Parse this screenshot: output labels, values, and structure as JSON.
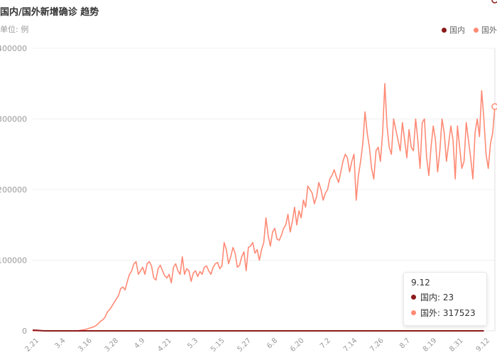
{
  "chart_data": {
    "type": "line",
    "title": "国内/国外新增确诊 趋势",
    "unit_label": "单位: 例",
    "ylim": [
      0,
      400000
    ],
    "y_ticks": [
      0,
      100000,
      200000,
      300000,
      400000
    ],
    "y_tick_labels": [
      "0",
      "100000",
      "200000",
      "300000",
      "400000"
    ],
    "x_tick_labels": [
      "2.21",
      "3.4",
      "3.16",
      "3.28",
      "4.9",
      "4.21",
      "5.3",
      "5.15",
      "5.27",
      "6.8",
      "6.20",
      "7.2",
      "7.14",
      "7.26",
      "8.7",
      "8.19",
      "8.31",
      "9.12"
    ],
    "legend_position": "top-right",
    "grid": true,
    "series": [
      {
        "name": "国内",
        "color": "#8b1a1a",
        "values": [
          1000,
          900,
          700,
          500,
          300,
          100,
          0,
          0,
          0,
          0,
          0,
          0,
          0,
          0,
          0,
          0,
          0,
          0,
          0,
          0,
          0,
          0,
          0,
          0,
          0,
          0,
          0,
          0,
          0,
          0,
          0,
          0,
          0,
          0,
          0,
          0,
          0,
          0,
          0,
          0,
          0,
          0,
          0,
          0,
          0,
          0,
          0,
          0,
          0,
          0,
          0,
          0,
          0,
          0,
          0,
          0,
          0,
          0,
          0,
          0,
          0,
          0,
          0,
          0,
          0,
          0,
          0,
          0,
          0,
          0,
          0,
          0,
          0,
          0,
          0,
          0,
          0,
          0,
          0,
          0,
          0,
          0,
          0,
          0,
          0,
          0,
          0,
          0,
          0,
          0,
          0,
          0,
          0,
          0,
          0,
          0,
          0,
          0,
          0,
          0,
          0,
          0,
          0,
          0,
          0,
          0,
          0,
          0,
          0,
          0,
          0,
          0,
          0,
          0,
          0,
          0,
          0,
          0,
          0,
          0,
          0,
          0,
          0,
          0,
          0,
          0,
          0,
          0,
          0,
          0,
          0,
          0,
          0,
          0,
          0,
          0,
          0,
          0,
          0,
          0,
          0,
          0,
          0,
          0,
          0,
          0,
          0,
          0,
          0,
          0,
          0,
          0,
          0,
          0,
          0,
          0,
          0,
          0,
          0,
          0,
          0,
          0,
          0,
          0,
          0,
          0,
          0,
          0,
          0,
          0,
          0,
          0,
          0,
          0,
          0,
          0,
          0,
          0,
          0,
          0,
          0,
          0,
          0,
          0,
          0,
          0,
          0,
          0,
          0,
          0,
          0,
          0,
          0,
          0,
          0,
          0,
          0,
          0,
          0,
          0,
          0,
          0,
          0,
          0,
          0,
          23
        ]
      },
      {
        "name": "国外",
        "color": "#ff8a75",
        "values": [
          0,
          0,
          0,
          0,
          0,
          0,
          0,
          0,
          0,
          0,
          0,
          0,
          0,
          0,
          0,
          0,
          0,
          0,
          0,
          0,
          0,
          500,
          1000,
          1500,
          2000,
          3000,
          4000,
          5000,
          6000,
          8000,
          11000,
          14000,
          16000,
          20000,
          27000,
          30000,
          35000,
          40000,
          45000,
          50000,
          60000,
          62000,
          58000,
          70000,
          80000,
          85000,
          95000,
          98000,
          80000,
          85000,
          90000,
          80000,
          95000,
          98000,
          92000,
          75000,
          72000,
          88000,
          93000,
          85000,
          78000,
          75000,
          80000,
          68000,
          90000,
          95000,
          85000,
          80000,
          105000,
          80000,
          88000,
          85000,
          70000,
          82000,
          85000,
          77000,
          84000,
          80000,
          90000,
          92000,
          85000,
          80000,
          90000,
          95000,
          97000,
          88000,
          92000,
          125000,
          115000,
          95000,
          105000,
          118000,
          110000,
          90000,
          93000,
          105000,
          112000,
          85000,
          118000,
          120000,
          125000,
          110000,
          115000,
          100000,
          115000,
          125000,
          160000,
          135000,
          120000,
          140000,
          145000,
          130000,
          128000,
          135000,
          145000,
          150000,
          165000,
          140000,
          155000,
          175000,
          150000,
          170000,
          160000,
          185000,
          175000,
          205000,
          200000,
          195000,
          180000,
          190000,
          210000,
          200000,
          185000,
          195000,
          200000,
          215000,
          220000,
          228000,
          218000,
          210000,
          225000,
          240000,
          250000,
          245000,
          225000,
          240000,
          250000,
          185000,
          220000,
          240000,
          265000,
          310000,
          280000,
          260000,
          230000,
          215000,
          255000,
          260000,
          240000,
          280000,
          350000,
          290000,
          260000,
          250000,
          300000,
          285000,
          270000,
          255000,
          295000,
          270000,
          245000,
          285000,
          260000,
          255000,
          300000,
          270000,
          230000,
          295000,
          300000,
          245000,
          220000,
          260000,
          290000,
          270000,
          225000,
          255000,
          300000,
          280000,
          240000,
          265000,
          290000,
          270000,
          215000,
          290000,
          260000,
          230000,
          240000,
          295000,
          270000,
          245000,
          215000,
          280000,
          300000,
          275000,
          340000,
          300000,
          250000,
          230000,
          265000,
          280000,
          317523
        ]
      }
    ],
    "tooltip": {
      "date": "9.12",
      "rows": [
        {
          "label": "国内: 23",
          "color": "#8b1a1a"
        },
        {
          "label": "国外: 317523",
          "color": "#ff8a75"
        }
      ]
    }
  }
}
